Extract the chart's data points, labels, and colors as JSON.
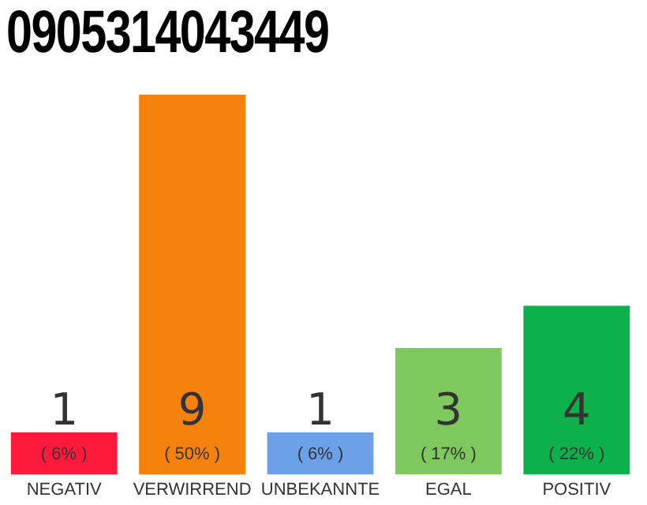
{
  "chart_data": {
    "type": "bar",
    "title": "0905314043449",
    "categories": [
      "NEGATIV",
      "VERWIRREND",
      "UNBEKANNTE",
      "EGAL",
      "POSITIV"
    ],
    "values": [
      1,
      9,
      1,
      3,
      4
    ],
    "colors": [
      "#ff1a3c",
      "#f5820d",
      "#6ca0e8",
      "#7dc95e",
      "#0db14b"
    ],
    "data_labels": true,
    "annotations": [
      "( 6% )",
      "( 50% )",
      "( 6% )",
      "( 17% )",
      "( 22% )"
    ],
    "grid": false,
    "legend": false
  }
}
